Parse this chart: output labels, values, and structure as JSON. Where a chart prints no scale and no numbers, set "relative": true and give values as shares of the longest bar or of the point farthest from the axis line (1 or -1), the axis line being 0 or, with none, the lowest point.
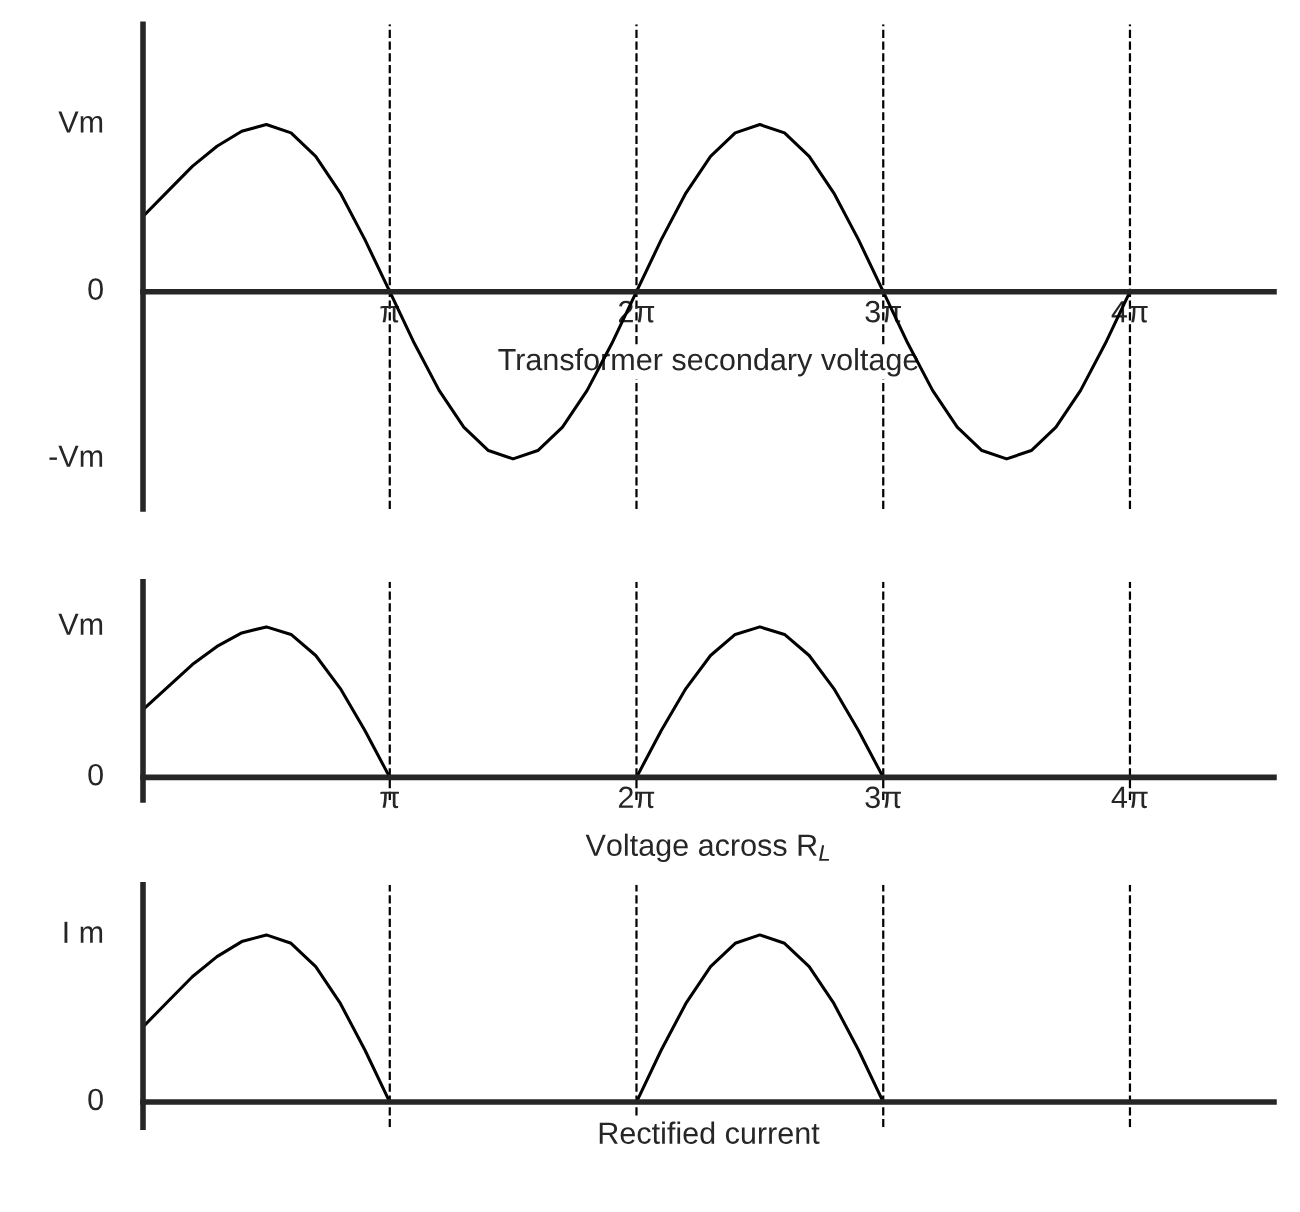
{
  "chart_data": [
    {
      "type": "line",
      "xlabel": "Transformer secondary voltage",
      "x": [
        0,
        0.314,
        0.628,
        0.942,
        1.257,
        1.571,
        1.885,
        2.199,
        2.513,
        2.827,
        3.142,
        3.456,
        3.77,
        4.084,
        4.398,
        4.712,
        5.027,
        5.341,
        5.655,
        5.969,
        6.283,
        6.597,
        6.912,
        7.226,
        7.54,
        7.854,
        8.168,
        8.482,
        8.796,
        9.111,
        9.425,
        9.739,
        10.053,
        10.367,
        10.681,
        10.996,
        11.31,
        11.624,
        11.938,
        12.252,
        12.566
      ],
      "series": [
        {
          "color": "#000000",
          "values": [
            0.45,
            0.6,
            0.75,
            0.87,
            0.96,
            1,
            0.95,
            0.81,
            0.59,
            0.31,
            0,
            -0.31,
            -0.59,
            -0.81,
            -0.95,
            -1,
            -0.95,
            -0.81,
            -0.59,
            -0.31,
            0,
            0.31,
            0.59,
            0.81,
            0.95,
            1,
            0.95,
            0.81,
            0.59,
            0.31,
            0,
            -0.31,
            -0.59,
            -0.81,
            -0.95,
            -1,
            -0.95,
            -0.81,
            -0.59,
            -0.31,
            0
          ]
        }
      ],
      "xlim": [
        0,
        14.4
      ],
      "xticks": [
        {
          "value": 3.142,
          "label": "π"
        },
        {
          "value": 6.283,
          "label": "2π"
        },
        {
          "value": 9.425,
          "label": "3π"
        },
        {
          "value": 12.566,
          "label": "4π"
        }
      ],
      "relative": true,
      "annotations": [
        "-Vm",
        "0",
        "Vm"
      ],
      "ref_lines": [
        {
          "axis": "x",
          "value": 3.142,
          "line_style": "dashed"
        },
        {
          "axis": "x",
          "value": 6.283,
          "line_style": "dashed"
        },
        {
          "axis": "x",
          "value": 9.425,
          "line_style": "dashed"
        },
        {
          "axis": "x",
          "value": 12.566,
          "line_style": "dashed"
        }
      ],
      "grid": false,
      "marker": "none",
      "line_style": "solid"
    },
    {
      "type": "line",
      "xlabel": "Voltage across R$_{L}$",
      "x": [
        0,
        0.314,
        0.628,
        0.942,
        1.257,
        1.571,
        1.885,
        2.199,
        2.513,
        2.827,
        3.142,
        3.456,
        3.77,
        4.084,
        4.398,
        4.712,
        5.027,
        5.341,
        5.655,
        5.969,
        6.283,
        6.597,
        6.912,
        7.226,
        7.54,
        7.854,
        8.168,
        8.482,
        8.796,
        9.111,
        9.425
      ],
      "series": [
        {
          "color": "#000000",
          "values": [
            0.45,
            0.6,
            0.75,
            0.87,
            0.96,
            1,
            0.95,
            0.81,
            0.59,
            0.31,
            0,
            0,
            0,
            0,
            0,
            0,
            0,
            0,
            0,
            0,
            0,
            0.31,
            0.59,
            0.81,
            0.95,
            1,
            0.95,
            0.81,
            0.59,
            0.31,
            0
          ]
        }
      ],
      "xlim": [
        0,
        14.4
      ],
      "xticks": [
        {
          "value": 3.142,
          "label": "π"
        },
        {
          "value": 6.283,
          "label": "2π"
        },
        {
          "value": 9.425,
          "label": "3π"
        },
        {
          "value": 12.566,
          "label": "4π"
        }
      ],
      "relative": true,
      "annotations": [
        "0",
        "Vm"
      ],
      "ref_lines": [
        {
          "axis": "x",
          "value": 3.142,
          "line_style": "dashed"
        },
        {
          "axis": "x",
          "value": 6.283,
          "line_style": "dashed"
        },
        {
          "axis": "x",
          "value": 9.425,
          "line_style": "dashed"
        },
        {
          "axis": "x",
          "value": 12.566,
          "line_style": "dashed"
        }
      ],
      "grid": false,
      "marker": "none",
      "line_style": "solid"
    },
    {
      "type": "line",
      "xlabel": "Rectified current",
      "x": [
        0,
        0.314,
        0.628,
        0.942,
        1.257,
        1.571,
        1.885,
        2.199,
        2.513,
        2.827,
        3.142,
        3.456,
        3.77,
        4.084,
        4.398,
        4.712,
        5.027,
        5.341,
        5.655,
        5.969,
        6.283,
        6.597,
        6.912,
        7.226,
        7.54,
        7.854,
        8.168,
        8.482,
        8.796,
        9.111,
        9.425
      ],
      "series": [
        {
          "color": "#000000",
          "values": [
            0.45,
            0.6,
            0.75,
            0.87,
            0.96,
            1,
            0.95,
            0.81,
            0.59,
            0.31,
            0,
            0,
            0,
            0,
            0,
            0,
            0,
            0,
            0,
            0,
            0,
            0.31,
            0.59,
            0.81,
            0.95,
            1,
            0.95,
            0.81,
            0.59,
            0.31,
            0
          ]
        }
      ],
      "xlim": [
        0,
        14.4
      ],
      "relative": true,
      "annotations": [
        "0",
        "I m"
      ],
      "ref_lines": [
        {
          "axis": "x",
          "value": 3.142,
          "line_style": "dashed"
        },
        {
          "axis": "x",
          "value": 6.283,
          "line_style": "dashed"
        },
        {
          "axis": "x",
          "value": 9.425,
          "line_style": "dashed"
        },
        {
          "axis": "x",
          "value": 12.566,
          "line_style": "dashed"
        }
      ],
      "grid": false,
      "marker": "none",
      "line_style": "solid"
    }
  ]
}
